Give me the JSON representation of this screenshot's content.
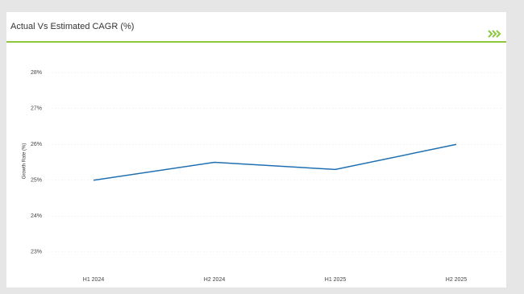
{
  "chart_data": {
    "type": "line",
    "title": "Actual Vs Estimated CAGR (%)",
    "y_label": "Growth Rate (%)",
    "categories": [
      "H1 2024",
      "H2 2024",
      "H1 2025",
      "H2 2025"
    ],
    "values": [
      25.0,
      25.5,
      25.3,
      26.0
    ],
    "color": "#1f6fb0",
    "ylim": [
      22.5,
      28.5
    ],
    "yticks": [
      {
        "value": 23,
        "label": "23%"
      },
      {
        "value": 24,
        "label": "24%"
      },
      {
        "value": 25,
        "label": "25%"
      },
      {
        "value": 26,
        "label": "26%"
      },
      {
        "value": 27,
        "label": "27%"
      },
      {
        "value": 28,
        "label": "28%"
      }
    ],
    "grid": true
  }
}
